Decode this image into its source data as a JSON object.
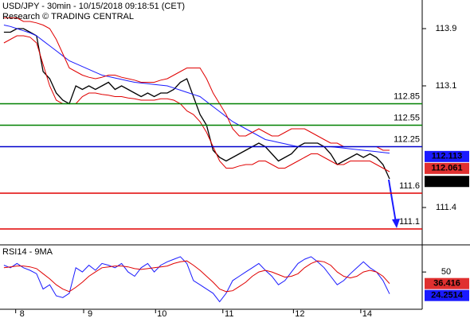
{
  "chart_data": [
    {
      "type": "line",
      "title": "USD/JPY - 30min - 10/15/2018 09:18:51 (CET)",
      "subtitle": "Research © TRADING CENTRAL",
      "xlim": [
        -0.6,
        64
      ],
      "xticks": [
        {
          "value": 1.8,
          "label": "8"
        },
        {
          "value": 12.2,
          "label": "9"
        },
        {
          "value": 23.2,
          "label": "10"
        },
        {
          "value": 33.5,
          "label": "11"
        },
        {
          "value": 44.3,
          "label": "12"
        },
        {
          "value": 54.6,
          "label": "14"
        }
      ],
      "ylim": [
        110.9,
        114.3
      ],
      "yticks": [
        113.9,
        113.1,
        111.4
      ],
      "series": [
        {
          "color": "#000000",
          "values": [
            113.85,
            113.85,
            113.9,
            113.9,
            113.85,
            113.8,
            113.3,
            113.2,
            113.0,
            112.9,
            112.85,
            113.1,
            113.05,
            113.1,
            113.05,
            113.1,
            113.15,
            113.05,
            113.1,
            113.05,
            113.0,
            112.95,
            113.0,
            112.95,
            113.0,
            113.0,
            113.05,
            113.15,
            113.2,
            112.95,
            112.7,
            112.55,
            112.2,
            112.1,
            112.05,
            112.1,
            112.15,
            112.2,
            112.25,
            112.3,
            112.25,
            112.15,
            112.05,
            112.1,
            112.15,
            112.25,
            112.3,
            112.3,
            112.3,
            112.25,
            112.15,
            112.0,
            112.05,
            112.1,
            112.15,
            112.1,
            112.15,
            112.1,
            112.0,
            111.8
          ]
        },
        {
          "color": "#1a1aff",
          "values": [
            113.95,
            113.93,
            113.9,
            113.87,
            113.84,
            113.8,
            113.73,
            113.66,
            113.59,
            113.52,
            113.45,
            113.41,
            113.37,
            113.33,
            113.29,
            113.25,
            113.23,
            113.21,
            113.19,
            113.17,
            113.15,
            113.14,
            113.13,
            113.12,
            113.11,
            113.1,
            113.07,
            113.04,
            113.01,
            112.98,
            112.95,
            112.88,
            112.81,
            112.74,
            112.67,
            112.6,
            112.55,
            112.5,
            112.45,
            112.4,
            112.35,
            112.33,
            112.31,
            112.29,
            112.27,
            112.25,
            112.25,
            112.25,
            112.25,
            112.25,
            112.25,
            112.24,
            112.23,
            112.22,
            112.21,
            112.2,
            112.19,
            112.18,
            112.17,
            112.16
          ]
        },
        {
          "color": "#e00000",
          "values": [
            114.05,
            114.05,
            114.05,
            114.0,
            114.0,
            113.98,
            113.95,
            113.9,
            113.75,
            113.55,
            113.35,
            113.3,
            113.25,
            113.22,
            113.2,
            113.22,
            113.25,
            113.25,
            113.22,
            113.2,
            113.18,
            113.15,
            113.15,
            113.15,
            113.18,
            113.2,
            113.25,
            113.3,
            113.35,
            113.35,
            113.35,
            113.2,
            113.0,
            112.85,
            112.7,
            112.5,
            112.4,
            112.4,
            112.45,
            112.5,
            112.45,
            112.4,
            112.4,
            112.45,
            112.5,
            112.5,
            112.5,
            112.45,
            112.4,
            112.35,
            112.3,
            112.3,
            112.25,
            112.25,
            112.25,
            112.25,
            112.25,
            112.25,
            112.2,
            112.2
          ]
        },
        {
          "color": "#e00000",
          "values": [
            113.7,
            113.75,
            113.8,
            113.8,
            113.78,
            113.7,
            113.4,
            113.1,
            112.9,
            112.85,
            112.85,
            112.85,
            112.95,
            113.0,
            113.0,
            112.98,
            112.97,
            112.95,
            112.95,
            112.93,
            112.92,
            112.9,
            112.9,
            112.9,
            112.92,
            112.92,
            112.9,
            112.85,
            112.75,
            112.7,
            112.6,
            112.45,
            112.25,
            112.05,
            111.95,
            111.95,
            111.98,
            112.0,
            112.0,
            112.05,
            112.05,
            112.0,
            111.95,
            111.95,
            112.0,
            112.05,
            112.1,
            112.15,
            112.15,
            112.1,
            112.05,
            112.0,
            112.0,
            112.05,
            112.05,
            112.05,
            112.05,
            112.0,
            111.95,
            111.9
          ]
        }
      ],
      "levels": [
        {
          "value": 112.85,
          "color": "#008000"
        },
        {
          "value": 112.55,
          "color": "#008000"
        },
        {
          "value": 112.25,
          "color": "#0000cc"
        },
        {
          "value": 111.6,
          "color": "#e00000"
        },
        {
          "value": 111.1,
          "color": "#e00000"
        }
      ],
      "markers": [
        {
          "value": 112.113,
          "color": "#1a1aff"
        },
        {
          "value": 112.061,
          "color": "#e03030"
        },
        {
          "value": 111.764,
          "color": "#000000"
        }
      ]
    },
    {
      "type": "line",
      "title": "RSI14 - 9MA",
      "ylim": [
        10,
        80
      ],
      "yticks": [
        50
      ],
      "series": [
        {
          "color": "#1a1aff",
          "values": [
            58,
            55,
            60,
            55,
            52,
            48,
            30,
            35,
            22,
            20,
            25,
            55,
            50,
            58,
            52,
            60,
            58,
            55,
            60,
            50,
            45,
            55,
            60,
            50,
            58,
            62,
            65,
            68,
            60,
            40,
            35,
            30,
            25,
            15,
            25,
            40,
            45,
            50,
            55,
            60,
            52,
            45,
            35,
            40,
            50,
            60,
            65,
            68,
            62,
            55,
            45,
            35,
            40,
            48,
            55,
            62,
            55,
            50,
            40,
            24.25
          ]
        },
        {
          "color": "#e00000",
          "values": [
            55,
            56,
            57,
            57,
            56,
            54,
            48,
            42,
            35,
            30,
            27,
            32,
            38,
            45,
            50,
            55,
            56,
            57,
            57,
            56,
            54,
            53,
            54,
            55,
            56,
            57,
            60,
            62,
            63,
            58,
            52,
            45,
            38,
            30,
            27,
            28,
            33,
            38,
            45,
            50,
            52,
            50,
            47,
            44,
            45,
            48,
            55,
            60,
            63,
            62,
            58,
            50,
            45,
            43,
            45,
            50,
            52,
            50,
            45,
            36.4
          ]
        }
      ],
      "markers": [
        {
          "value": 36.416,
          "color": "#e03030"
        },
        {
          "value": 24.2514,
          "color": "#1a1aff"
        }
      ]
    }
  ]
}
